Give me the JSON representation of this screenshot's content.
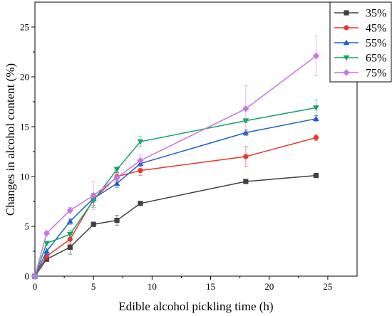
{
  "chart_data": {
    "type": "line",
    "xlabel": "Edible alcohol pickling time (h)",
    "ylabel": "Changes in alcohol content (%)",
    "xlim": [
      0,
      27.5
    ],
    "ylim": [
      0,
      27.5
    ],
    "xticks": [
      0,
      5,
      10,
      15,
      20,
      25
    ],
    "yticks": [
      0,
      5,
      10,
      15,
      20,
      25
    ],
    "grid": false,
    "legend_position": "top-right",
    "series": [
      {
        "name": "35%",
        "color": "#404040",
        "marker": "square",
        "x": [
          0,
          1,
          3,
          5,
          7,
          9,
          18,
          24
        ],
        "y": [
          0,
          1.7,
          2.9,
          5.2,
          5.6,
          7.3,
          9.5,
          10.1
        ],
        "err": [
          0,
          0.2,
          0.7,
          0.1,
          0.5,
          0.2,
          0.2,
          0.2
        ]
      },
      {
        "name": "45%",
        "color": "#e8382e",
        "marker": "circle",
        "x": [
          0,
          1,
          3,
          5,
          7,
          9,
          18,
          24
        ],
        "y": [
          0,
          2.0,
          3.7,
          7.7,
          10.0,
          10.6,
          12.0,
          13.9
        ],
        "err": [
          0,
          0.3,
          0.5,
          0.6,
          0.4,
          0.5,
          1.0,
          0.3
        ]
      },
      {
        "name": "55%",
        "color": "#1f5ecf",
        "marker": "triangle-up",
        "x": [
          0,
          1,
          3,
          5,
          7,
          9,
          18,
          24
        ],
        "y": [
          0,
          2.5,
          5.5,
          7.8,
          9.3,
          11.3,
          14.4,
          15.8
        ],
        "err": [
          0,
          0.3,
          0.3,
          0.4,
          0.4,
          0.3,
          0.3,
          0.3
        ]
      },
      {
        "name": "65%",
        "color": "#17a267",
        "marker": "triangle-down",
        "x": [
          0,
          1,
          3,
          5,
          7,
          9,
          18,
          24
        ],
        "y": [
          0,
          3.3,
          4.2,
          7.6,
          10.7,
          13.5,
          15.6,
          16.9
        ],
        "err": [
          0,
          0.2,
          0.4,
          0.7,
          0.3,
          0.5,
          0.2,
          0.8
        ]
      },
      {
        "name": "75%",
        "color": "#c777e0",
        "marker": "diamond",
        "x": [
          0,
          1,
          3,
          5,
          7,
          9,
          18,
          24
        ],
        "y": [
          0,
          4.3,
          6.6,
          8.1,
          9.9,
          11.6,
          16.8,
          22.1
        ],
        "err": [
          0,
          0.2,
          0.3,
          1.4,
          0.4,
          0.6,
          2.3,
          2.0
        ]
      }
    ]
  }
}
